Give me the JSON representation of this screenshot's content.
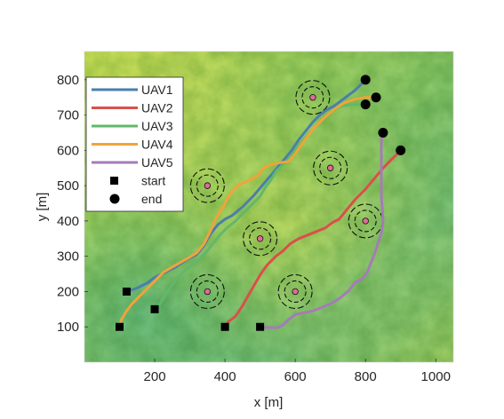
{
  "chart_data": {
    "type": "line",
    "xlabel": "x [m]",
    "ylabel": "y [m]",
    "xlim": [
      0,
      1050
    ],
    "ylim": [
      0,
      880
    ],
    "xticks": [
      200,
      400,
      600,
      800,
      1000
    ],
    "yticks": [
      100,
      200,
      300,
      400,
      500,
      600,
      700,
      800
    ],
    "xtick_labels": [
      "200",
      "400",
      "600",
      "800",
      "1000"
    ],
    "ytick_labels": [
      "100",
      "200",
      "300",
      "400",
      "500",
      "600",
      "700",
      "800"
    ],
    "grid": false,
    "background": "terrain elevation map (green to yellow shading)",
    "legend_position": "top-left",
    "series": [
      {
        "name": "UAV1",
        "color": "#4b7fac",
        "points": [
          [
            120,
            200
          ],
          [
            150,
            210
          ],
          [
            180,
            225
          ],
          [
            200,
            240
          ],
          [
            230,
            255
          ],
          [
            260,
            270
          ],
          [
            290,
            290
          ],
          [
            320,
            305
          ],
          [
            340,
            330
          ],
          [
            360,
            365
          ],
          [
            380,
            390
          ],
          [
            400,
            405
          ],
          [
            420,
            415
          ],
          [
            450,
            440
          ],
          [
            480,
            470
          ],
          [
            510,
            505
          ],
          [
            540,
            540
          ],
          [
            565,
            570
          ],
          [
            590,
            600
          ],
          [
            610,
            630
          ],
          [
            630,
            655
          ],
          [
            650,
            680
          ],
          [
            670,
            700
          ],
          [
            690,
            715
          ],
          [
            710,
            725
          ],
          [
            730,
            740
          ],
          [
            750,
            755
          ],
          [
            770,
            770
          ],
          [
            785,
            785
          ],
          [
            800,
            800
          ]
        ]
      },
      {
        "name": "UAV2",
        "color": "#d9504a",
        "points": [
          [
            400,
            100
          ],
          [
            410,
            115
          ],
          [
            430,
            130
          ],
          [
            450,
            160
          ],
          [
            470,
            195
          ],
          [
            490,
            230
          ],
          [
            505,
            255
          ],
          [
            520,
            275
          ],
          [
            545,
            300
          ],
          [
            565,
            315
          ],
          [
            585,
            335
          ],
          [
            610,
            350
          ],
          [
            635,
            360
          ],
          [
            660,
            370
          ],
          [
            685,
            380
          ],
          [
            705,
            395
          ],
          [
            725,
            405
          ],
          [
            745,
            430
          ],
          [
            770,
            460
          ],
          [
            800,
            490
          ],
          [
            825,
            520
          ],
          [
            850,
            550
          ],
          [
            875,
            575
          ],
          [
            900,
            600
          ]
        ]
      },
      {
        "name": "UAV3",
        "color": "#62b86a",
        "points": [
          [
            200,
            150
          ],
          [
            215,
            165
          ],
          [
            230,
            190
          ],
          [
            250,
            220
          ],
          [
            275,
            250
          ],
          [
            300,
            270
          ],
          [
            325,
            290
          ],
          [
            345,
            310
          ],
          [
            365,
            335
          ],
          [
            385,
            360
          ],
          [
            405,
            380
          ],
          [
            430,
            400
          ],
          [
            455,
            425
          ],
          [
            480,
            450
          ],
          [
            500,
            470
          ],
          [
            515,
            495
          ],
          [
            530,
            515
          ],
          [
            545,
            540
          ],
          [
            560,
            555
          ],
          [
            580,
            575
          ],
          [
            600,
            600
          ],
          [
            620,
            625
          ],
          [
            640,
            650
          ],
          [
            660,
            670
          ],
          [
            680,
            690
          ],
          [
            705,
            710
          ],
          [
            730,
            725
          ],
          [
            760,
            730
          ],
          [
            800,
            730
          ]
        ]
      },
      {
        "name": "UAV4",
        "color": "#f0a33a",
        "points": [
          [
            100,
            100
          ],
          [
            105,
            120
          ],
          [
            120,
            145
          ],
          [
            135,
            165
          ],
          [
            160,
            190
          ],
          [
            190,
            220
          ],
          [
            225,
            255
          ],
          [
            260,
            275
          ],
          [
            295,
            295
          ],
          [
            320,
            310
          ],
          [
            340,
            335
          ],
          [
            360,
            375
          ],
          [
            375,
            410
          ],
          [
            395,
            440
          ],
          [
            410,
            470
          ],
          [
            425,
            490
          ],
          [
            445,
            505
          ],
          [
            470,
            515
          ],
          [
            495,
            530
          ],
          [
            510,
            550
          ],
          [
            530,
            560
          ],
          [
            555,
            565
          ],
          [
            580,
            568
          ],
          [
            600,
            590
          ],
          [
            620,
            620
          ],
          [
            650,
            660
          ],
          [
            680,
            690
          ],
          [
            710,
            715
          ],
          [
            740,
            735
          ],
          [
            770,
            745
          ],
          [
            800,
            750
          ],
          [
            830,
            750
          ]
        ]
      },
      {
        "name": "UAV5",
        "color": "#a57bb8",
        "points": [
          [
            500,
            100
          ],
          [
            525,
            98
          ],
          [
            550,
            98
          ],
          [
            565,
            105
          ],
          [
            580,
            120
          ],
          [
            600,
            135
          ],
          [
            625,
            140
          ],
          [
            650,
            145
          ],
          [
            675,
            155
          ],
          [
            700,
            165
          ],
          [
            725,
            180
          ],
          [
            750,
            200
          ],
          [
            770,
            225
          ],
          [
            790,
            235
          ],
          [
            805,
            255
          ],
          [
            815,
            280
          ],
          [
            825,
            305
          ],
          [
            835,
            335
          ],
          [
            845,
            365
          ],
          [
            850,
            395
          ],
          [
            848,
            430
          ],
          [
            845,
            470
          ],
          [
            845,
            510
          ],
          [
            845,
            550
          ],
          [
            845,
            590
          ],
          [
            845,
            620
          ],
          [
            848,
            650
          ]
        ]
      }
    ],
    "start_points": [
      [
        100,
        100
      ],
      [
        120,
        200
      ],
      [
        200,
        150
      ],
      [
        400,
        100
      ],
      [
        500,
        100
      ]
    ],
    "end_points": [
      [
        800,
        800
      ],
      [
        800,
        730
      ],
      [
        830,
        750
      ],
      [
        850,
        650
      ],
      [
        900,
        600
      ]
    ],
    "threat_centers": [
      [
        650,
        750
      ],
      [
        700,
        550
      ],
      [
        350,
        500
      ],
      [
        500,
        350
      ],
      [
        800,
        400
      ],
      [
        350,
        200
      ],
      [
        600,
        200
      ]
    ],
    "legend": [
      {
        "label": "UAV1",
        "kind": "line",
        "color": "#4b7fac"
      },
      {
        "label": "UAV2",
        "kind": "line",
        "color": "#d9504a"
      },
      {
        "label": "UAV3",
        "kind": "line",
        "color": "#62b86a"
      },
      {
        "label": "UAV4",
        "kind": "line",
        "color": "#f0a33a"
      },
      {
        "label": "UAV5",
        "kind": "line",
        "color": "#a57bb8"
      },
      {
        "label": "start",
        "kind": "square",
        "color": "#000000"
      },
      {
        "label": "end",
        "kind": "circle",
        "color": "#000000"
      }
    ]
  }
}
